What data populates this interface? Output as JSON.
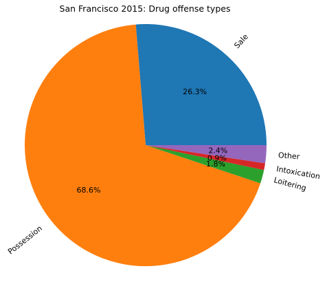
{
  "chart_data": {
    "type": "pie",
    "title": "San Francisco 2015: Drug offense types",
    "slices": [
      {
        "label": "Sale",
        "value": 26.3,
        "pct_label": "26.3%",
        "color": "#1f77b4"
      },
      {
        "label": "Possession",
        "value": 68.6,
        "pct_label": "68.6%",
        "color": "#ff7f0e"
      },
      {
        "label": "Loitering",
        "value": 1.8,
        "pct_label": "1.8%",
        "color": "#2ca02c"
      },
      {
        "label": "Intoxication",
        "value": 0.9,
        "pct_label": "0.9%",
        "color": "#d62728"
      },
      {
        "label": "Other",
        "value": 2.4,
        "pct_label": "2.4%",
        "color": "#9467bd"
      }
    ],
    "start_angle_deg": 0,
    "direction": "counterclockwise",
    "rotate_labels": true,
    "legend": "none"
  }
}
